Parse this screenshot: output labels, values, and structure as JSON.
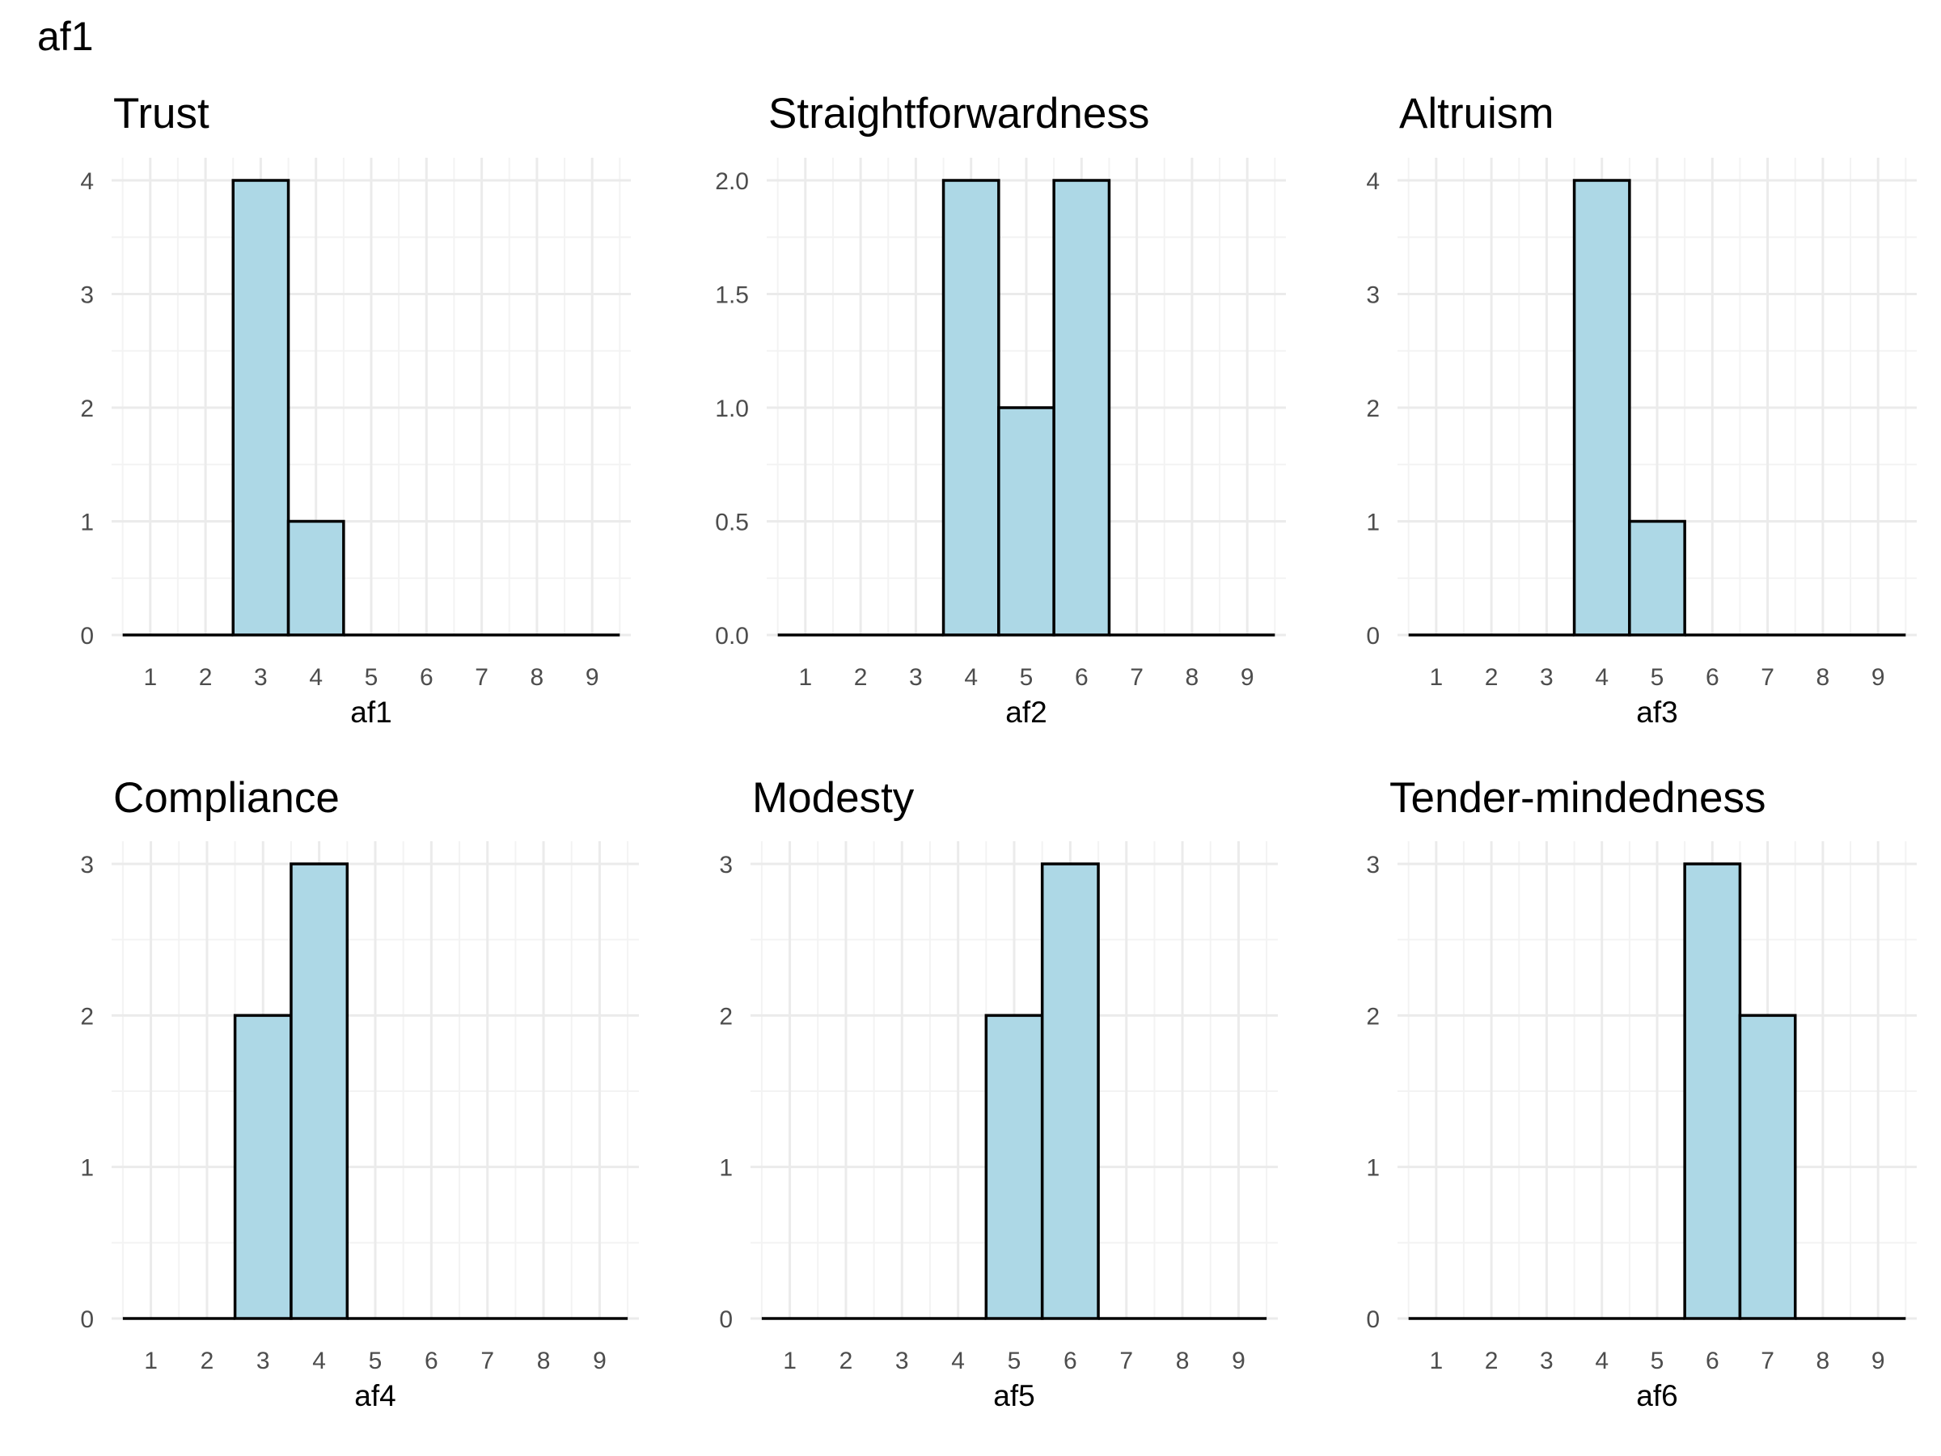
{
  "figure_title": "af1",
  "colors": {
    "bar_fill": "#add8e6",
    "bar_stroke": "#000000",
    "grid_major": "#ebebeb",
    "grid_minor": "#f3f3f3"
  },
  "chart_data": [
    {
      "type": "bar",
      "title": "Trust",
      "xlabel": "af1",
      "ylabel": "",
      "categories": [
        "1",
        "2",
        "3",
        "4",
        "5",
        "6",
        "7",
        "8",
        "9"
      ],
      "values": [
        0,
        0,
        4,
        1,
        0,
        0,
        0,
        0,
        0
      ],
      "yticks": [
        "0",
        "1",
        "2",
        "3",
        "4"
      ],
      "ylim": [
        0,
        4
      ],
      "grid": true
    },
    {
      "type": "bar",
      "title": "Straightforwardness",
      "xlabel": "af2",
      "ylabel": "",
      "categories": [
        "1",
        "2",
        "3",
        "4",
        "5",
        "6",
        "7",
        "8",
        "9"
      ],
      "values": [
        0,
        0,
        0,
        2,
        1,
        2,
        0,
        0,
        0
      ],
      "yticks": [
        "0.0",
        "0.5",
        "1.0",
        "1.5",
        "2.0"
      ],
      "ylim": [
        0,
        2
      ],
      "grid": true
    },
    {
      "type": "bar",
      "title": "Altruism",
      "xlabel": "af3",
      "ylabel": "",
      "categories": [
        "1",
        "2",
        "3",
        "4",
        "5",
        "6",
        "7",
        "8",
        "9"
      ],
      "values": [
        0,
        0,
        0,
        4,
        1,
        0,
        0,
        0,
        0
      ],
      "yticks": [
        "0",
        "1",
        "2",
        "3",
        "4"
      ],
      "ylim": [
        0,
        4
      ],
      "grid": true
    },
    {
      "type": "bar",
      "title": "Compliance",
      "xlabel": "af4",
      "ylabel": "",
      "categories": [
        "1",
        "2",
        "3",
        "4",
        "5",
        "6",
        "7",
        "8",
        "9"
      ],
      "values": [
        0,
        0,
        2,
        3,
        0,
        0,
        0,
        0,
        0
      ],
      "yticks": [
        "0",
        "1",
        "2",
        "3"
      ],
      "ylim": [
        0,
        3
      ],
      "grid": true
    },
    {
      "type": "bar",
      "title": "Modesty",
      "xlabel": "af5",
      "ylabel": "",
      "categories": [
        "1",
        "2",
        "3",
        "4",
        "5",
        "6",
        "7",
        "8",
        "9"
      ],
      "values": [
        0,
        0,
        0,
        0,
        2,
        3,
        0,
        0,
        0
      ],
      "yticks": [
        "0",
        "1",
        "2",
        "3"
      ],
      "ylim": [
        0,
        3
      ],
      "grid": true
    },
    {
      "type": "bar",
      "title": "Tender-mindedness",
      "xlabel": "af6",
      "ylabel": "",
      "categories": [
        "1",
        "2",
        "3",
        "4",
        "5",
        "6",
        "7",
        "8",
        "9"
      ],
      "values": [
        0,
        0,
        0,
        0,
        0,
        3,
        2,
        0,
        0
      ],
      "yticks": [
        "0",
        "1",
        "2",
        "3"
      ],
      "ylim": [
        0,
        3
      ],
      "grid": true
    }
  ]
}
